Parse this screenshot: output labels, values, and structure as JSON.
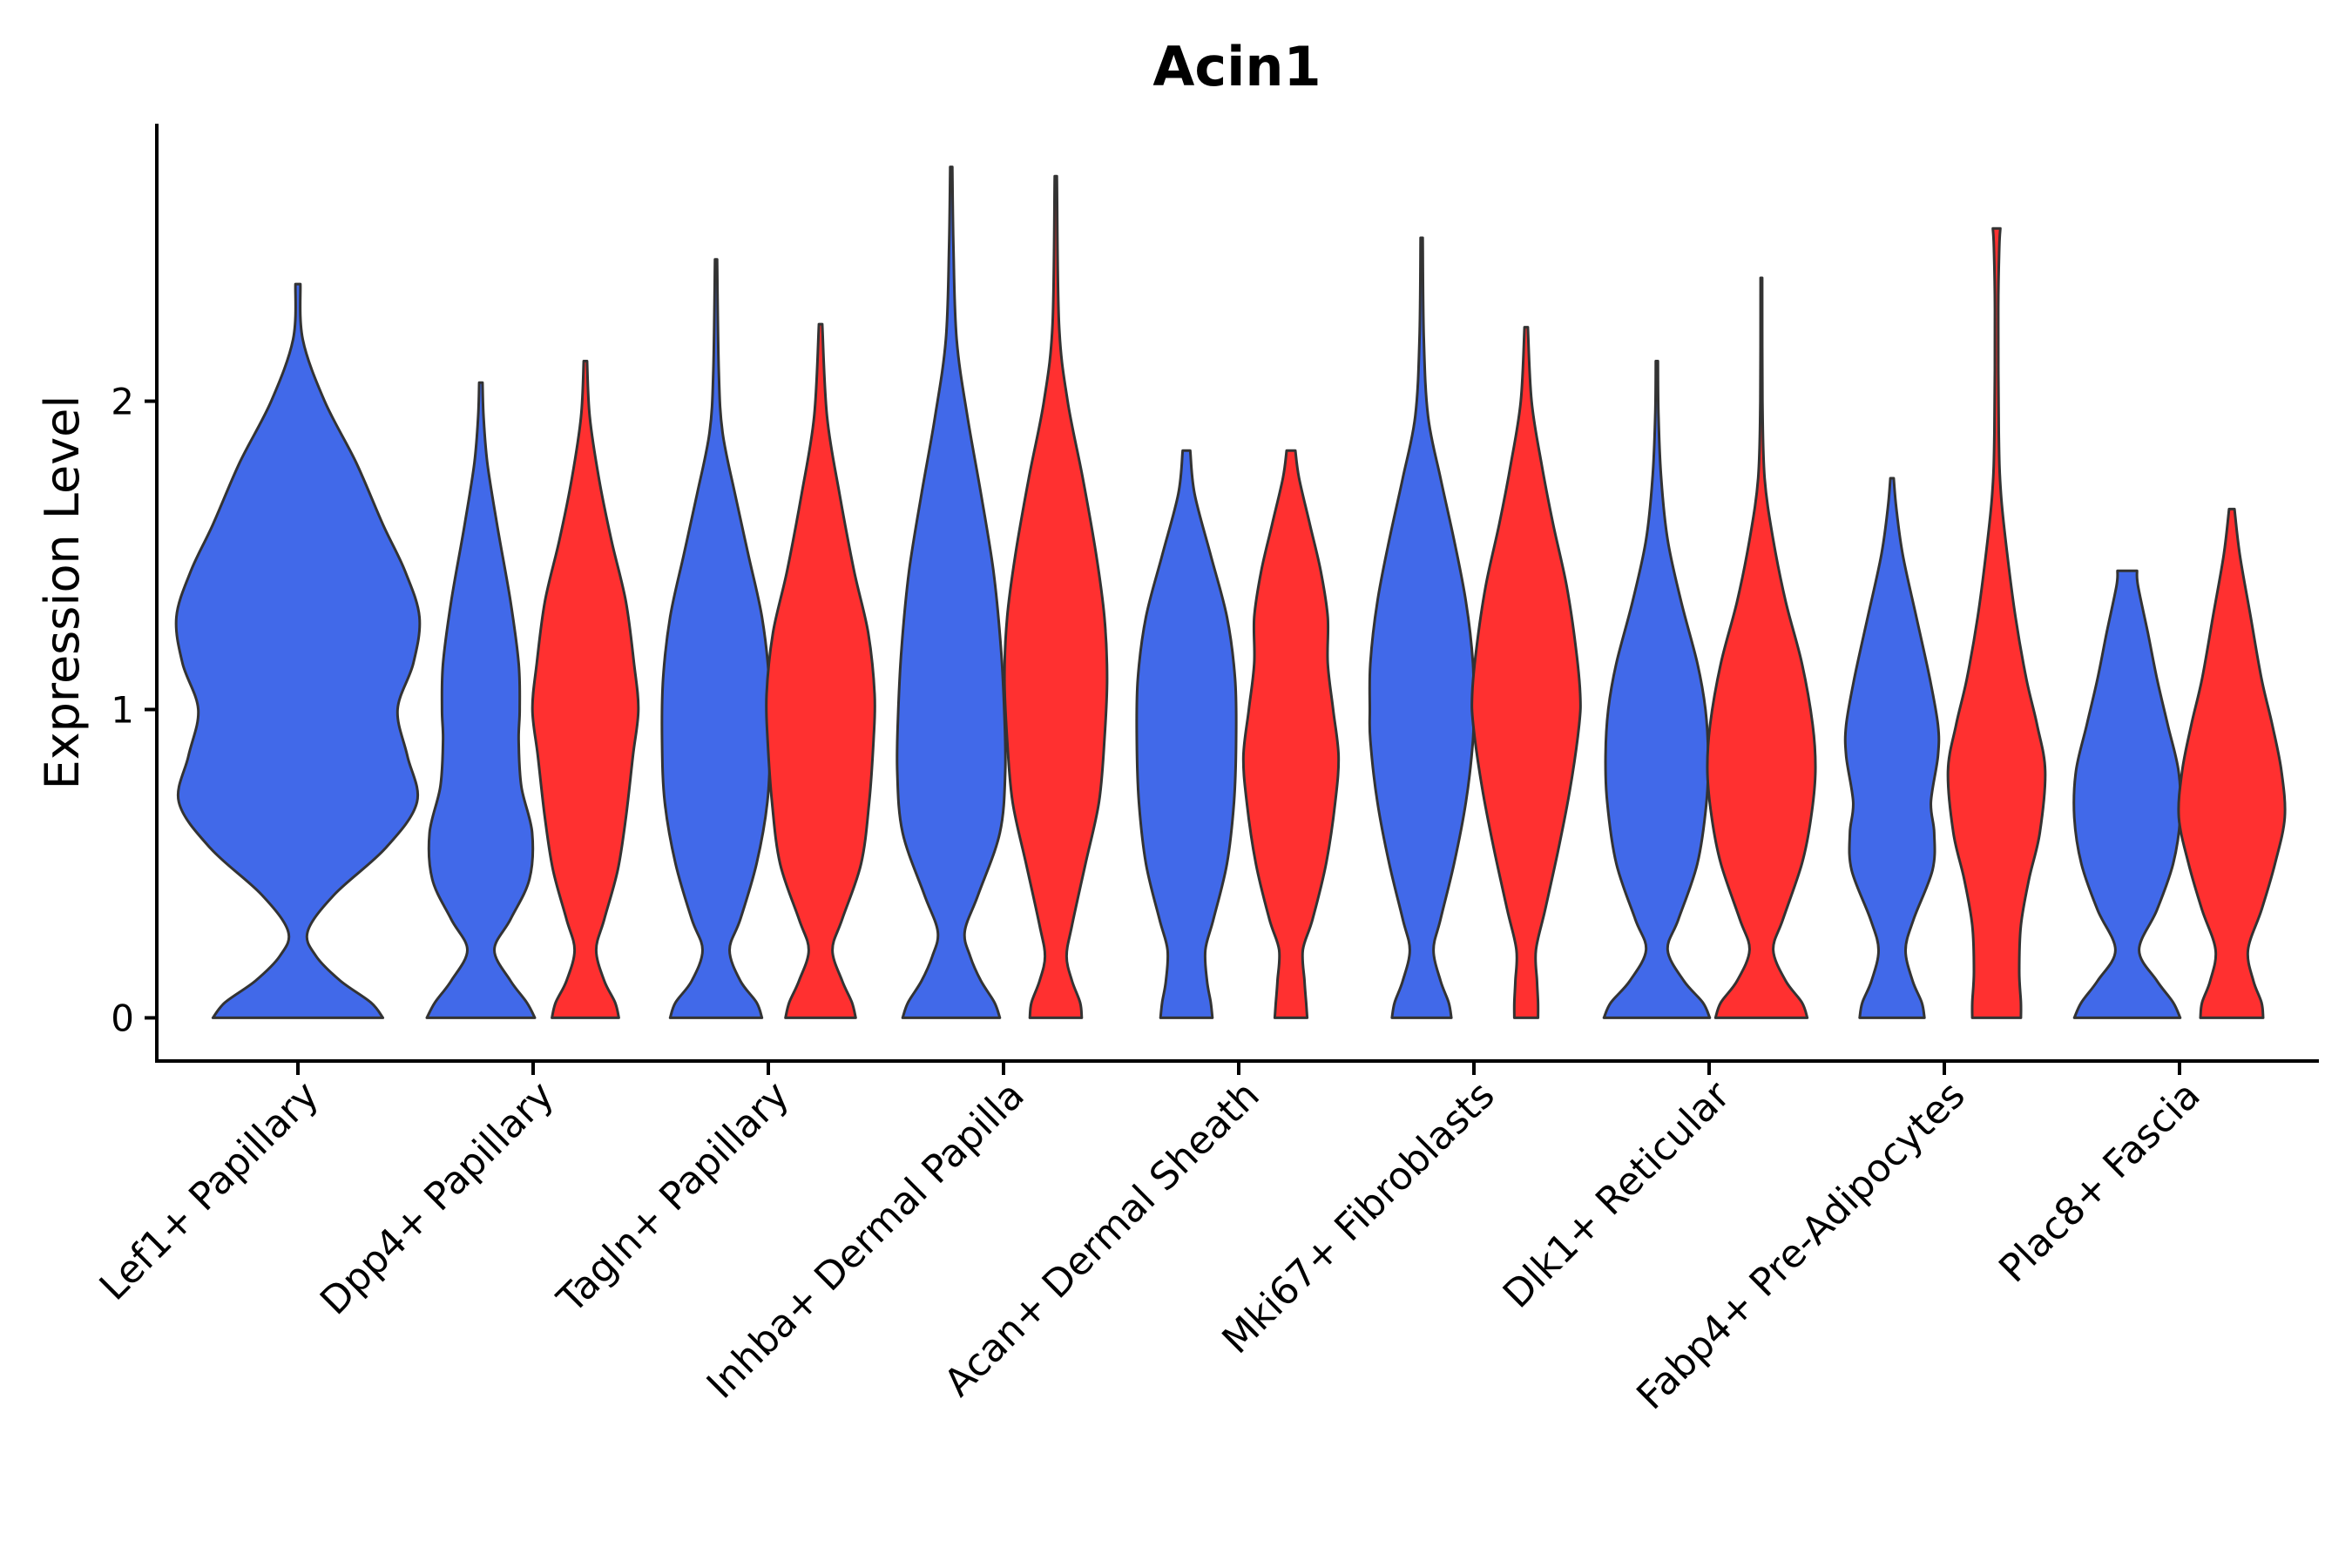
{
  "chart_data": {
    "type": "violin",
    "title": "Acin1",
    "ylabel": "Expression Level",
    "xlabel": "",
    "ylim": [
      -0.14,
      2.9
    ],
    "yticks": [
      0,
      1,
      2
    ],
    "categories": [
      "Lef1+ Papillary",
      "Dpp4+ Papillary",
      "Tagln+ Papillary",
      "Inhba+ Dermal Papilla",
      "Acan+ Dermal Sheath",
      "Mki67+ Fibroblasts",
      "Dlk1+ Reticular",
      "Fabp4+ Pre-Adipocytes",
      "Plac8+ Fascia"
    ],
    "series": [
      {
        "name": "blue group",
        "color": "#4169E9"
      },
      {
        "name": "red group",
        "color": "#FF3030"
      }
    ],
    "violins": [
      {
        "category": "Lef1+ Papillary",
        "series": "blue group",
        "max": 2.38,
        "profile": [
          [
            0,
            0.7
          ],
          [
            0.05,
            0.6
          ],
          [
            0.12,
            0.35
          ],
          [
            0.2,
            0.15
          ],
          [
            0.28,
            0.08
          ],
          [
            0.4,
            0.3
          ],
          [
            0.55,
            0.72
          ],
          [
            0.7,
            0.98
          ],
          [
            0.85,
            0.9
          ],
          [
            1.0,
            0.82
          ],
          [
            1.15,
            0.95
          ],
          [
            1.3,
            1.0
          ],
          [
            1.45,
            0.88
          ],
          [
            1.6,
            0.7
          ],
          [
            1.8,
            0.48
          ],
          [
            2.0,
            0.22
          ],
          [
            2.2,
            0.04
          ],
          [
            2.38,
            0.02
          ]
        ]
      },
      {
        "category": "Dpp4+ Papillary",
        "series": "blue group",
        "max": 2.06,
        "profile": [
          [
            0,
            1.0
          ],
          [
            0.05,
            0.85
          ],
          [
            0.12,
            0.55
          ],
          [
            0.22,
            0.25
          ],
          [
            0.32,
            0.55
          ],
          [
            0.45,
            0.9
          ],
          [
            0.6,
            0.95
          ],
          [
            0.75,
            0.75
          ],
          [
            0.9,
            0.7
          ],
          [
            1.0,
            0.72
          ],
          [
            1.15,
            0.7
          ],
          [
            1.35,
            0.55
          ],
          [
            1.6,
            0.3
          ],
          [
            1.8,
            0.12
          ],
          [
            1.95,
            0.05
          ],
          [
            2.06,
            0.03
          ]
        ]
      },
      {
        "category": "Dpp4+ Papillary",
        "series": "red group",
        "max": 2.13,
        "profile": [
          [
            0,
            0.62
          ],
          [
            0.05,
            0.55
          ],
          [
            0.12,
            0.35
          ],
          [
            0.22,
            0.2
          ],
          [
            0.32,
            0.35
          ],
          [
            0.48,
            0.6
          ],
          [
            0.65,
            0.75
          ],
          [
            0.85,
            0.88
          ],
          [
            1.0,
            0.98
          ],
          [
            1.15,
            0.9
          ],
          [
            1.35,
            0.75
          ],
          [
            1.55,
            0.48
          ],
          [
            1.75,
            0.25
          ],
          [
            1.95,
            0.08
          ],
          [
            2.13,
            0.03
          ]
        ]
      },
      {
        "category": "Tagln+ Papillary",
        "series": "blue group",
        "max": 2.46,
        "profile": [
          [
            0,
            0.85
          ],
          [
            0.05,
            0.75
          ],
          [
            0.12,
            0.45
          ],
          [
            0.22,
            0.25
          ],
          [
            0.32,
            0.45
          ],
          [
            0.5,
            0.75
          ],
          [
            0.7,
            0.95
          ],
          [
            0.9,
            1.0
          ],
          [
            1.1,
            0.98
          ],
          [
            1.3,
            0.85
          ],
          [
            1.5,
            0.6
          ],
          [
            1.7,
            0.35
          ],
          [
            1.9,
            0.12
          ],
          [
            2.1,
            0.05
          ],
          [
            2.46,
            0.02
          ]
        ]
      },
      {
        "category": "Tagln+ Papillary",
        "series": "red group",
        "max": 2.25,
        "profile": [
          [
            0,
            0.65
          ],
          [
            0.05,
            0.58
          ],
          [
            0.12,
            0.4
          ],
          [
            0.22,
            0.22
          ],
          [
            0.32,
            0.4
          ],
          [
            0.5,
            0.75
          ],
          [
            0.7,
            0.9
          ],
          [
            0.9,
            0.98
          ],
          [
            1.05,
            1.0
          ],
          [
            1.25,
            0.88
          ],
          [
            1.45,
            0.62
          ],
          [
            1.7,
            0.35
          ],
          [
            1.95,
            0.12
          ],
          [
            2.25,
            0.03
          ]
        ]
      },
      {
        "category": "Inhba+ Dermal Papilla",
        "series": "blue group",
        "max": 2.76,
        "profile": [
          [
            0,
            0.9
          ],
          [
            0.05,
            0.8
          ],
          [
            0.12,
            0.55
          ],
          [
            0.2,
            0.35
          ],
          [
            0.28,
            0.25
          ],
          [
            0.4,
            0.5
          ],
          [
            0.6,
            0.9
          ],
          [
            0.8,
            1.0
          ],
          [
            1.0,
            0.98
          ],
          [
            1.2,
            0.92
          ],
          [
            1.45,
            0.78
          ],
          [
            1.7,
            0.55
          ],
          [
            1.95,
            0.3
          ],
          [
            2.2,
            0.1
          ],
          [
            2.5,
            0.04
          ],
          [
            2.76,
            0.02
          ]
        ]
      },
      {
        "category": "Inhba+ Dermal Papilla",
        "series": "red group",
        "max": 2.73,
        "profile": [
          [
            0,
            0.48
          ],
          [
            0.05,
            0.45
          ],
          [
            0.12,
            0.3
          ],
          [
            0.2,
            0.2
          ],
          [
            0.3,
            0.3
          ],
          [
            0.5,
            0.55
          ],
          [
            0.7,
            0.8
          ],
          [
            0.9,
            0.9
          ],
          [
            1.1,
            0.95
          ],
          [
            1.3,
            0.9
          ],
          [
            1.5,
            0.75
          ],
          [
            1.75,
            0.5
          ],
          [
            2.0,
            0.22
          ],
          [
            2.25,
            0.06
          ],
          [
            2.73,
            0.02
          ]
        ]
      },
      {
        "category": "Acan+ Dermal Sheath",
        "series": "blue group",
        "max": 1.84,
        "profile": [
          [
            0,
            0.48
          ],
          [
            0.05,
            0.45
          ],
          [
            0.12,
            0.38
          ],
          [
            0.22,
            0.35
          ],
          [
            0.32,
            0.5
          ],
          [
            0.5,
            0.75
          ],
          [
            0.7,
            0.88
          ],
          [
            0.9,
            0.92
          ],
          [
            1.1,
            0.9
          ],
          [
            1.3,
            0.75
          ],
          [
            1.5,
            0.45
          ],
          [
            1.7,
            0.15
          ],
          [
            1.84,
            0.07
          ]
        ]
      },
      {
        "category": "Acan+ Dermal Sheath",
        "series": "red group",
        "max": 1.84,
        "profile": [
          [
            0,
            0.3
          ],
          [
            0.05,
            0.28
          ],
          [
            0.12,
            0.25
          ],
          [
            0.22,
            0.22
          ],
          [
            0.32,
            0.4
          ],
          [
            0.5,
            0.65
          ],
          [
            0.7,
            0.82
          ],
          [
            0.85,
            0.88
          ],
          [
            1.0,
            0.78
          ],
          [
            1.15,
            0.68
          ],
          [
            1.3,
            0.68
          ],
          [
            1.45,
            0.55
          ],
          [
            1.6,
            0.35
          ],
          [
            1.75,
            0.15
          ],
          [
            1.84,
            0.08
          ]
        ]
      },
      {
        "category": "Mki67+ Fibroblasts",
        "series": "blue group",
        "max": 2.53,
        "profile": [
          [
            0,
            0.55
          ],
          [
            0.05,
            0.5
          ],
          [
            0.12,
            0.35
          ],
          [
            0.22,
            0.22
          ],
          [
            0.32,
            0.35
          ],
          [
            0.5,
            0.6
          ],
          [
            0.7,
            0.82
          ],
          [
            0.9,
            0.95
          ],
          [
            1.0,
            0.96
          ],
          [
            1.15,
            0.95
          ],
          [
            1.35,
            0.82
          ],
          [
            1.55,
            0.6
          ],
          [
            1.75,
            0.35
          ],
          [
            1.95,
            0.12
          ],
          [
            2.2,
            0.04
          ],
          [
            2.53,
            0.02
          ]
        ]
      },
      {
        "category": "Mki67+ Fibroblasts",
        "series": "red group",
        "max": 2.24,
        "profile": [
          [
            0,
            0.22
          ],
          [
            0.05,
            0.22
          ],
          [
            0.12,
            0.2
          ],
          [
            0.22,
            0.18
          ],
          [
            0.35,
            0.35
          ],
          [
            0.55,
            0.6
          ],
          [
            0.75,
            0.82
          ],
          [
            0.95,
            0.98
          ],
          [
            1.05,
            1.0
          ],
          [
            1.2,
            0.92
          ],
          [
            1.4,
            0.75
          ],
          [
            1.6,
            0.5
          ],
          [
            1.8,
            0.28
          ],
          [
            2.0,
            0.1
          ],
          [
            2.24,
            0.03
          ]
        ]
      },
      {
        "category": "Dlk1+ Reticular",
        "series": "blue group",
        "max": 2.13,
        "profile": [
          [
            0,
            0.98
          ],
          [
            0.05,
            0.85
          ],
          [
            0.12,
            0.5
          ],
          [
            0.22,
            0.2
          ],
          [
            0.32,
            0.4
          ],
          [
            0.5,
            0.75
          ],
          [
            0.7,
            0.92
          ],
          [
            0.85,
            0.95
          ],
          [
            1.0,
            0.9
          ],
          [
            1.15,
            0.75
          ],
          [
            1.35,
            0.45
          ],
          [
            1.55,
            0.2
          ],
          [
            1.75,
            0.08
          ],
          [
            1.95,
            0.03
          ],
          [
            2.13,
            0.02
          ]
        ]
      },
      {
        "category": "Dlk1+ Reticular",
        "series": "red group",
        "max": 2.4,
        "profile": [
          [
            0,
            0.85
          ],
          [
            0.05,
            0.75
          ],
          [
            0.12,
            0.45
          ],
          [
            0.22,
            0.22
          ],
          [
            0.32,
            0.4
          ],
          [
            0.5,
            0.75
          ],
          [
            0.65,
            0.92
          ],
          [
            0.8,
            1.0
          ],
          [
            0.95,
            0.95
          ],
          [
            1.15,
            0.75
          ],
          [
            1.35,
            0.45
          ],
          [
            1.55,
            0.22
          ],
          [
            1.75,
            0.06
          ],
          [
            2.0,
            0.02
          ],
          [
            2.4,
            0.015
          ]
        ]
      },
      {
        "category": "Fabp4+ Pre-Adipocytes",
        "series": "blue group",
        "max": 1.75,
        "profile": [
          [
            0,
            0.6
          ],
          [
            0.05,
            0.55
          ],
          [
            0.12,
            0.38
          ],
          [
            0.22,
            0.25
          ],
          [
            0.32,
            0.4
          ],
          [
            0.48,
            0.75
          ],
          [
            0.6,
            0.78
          ],
          [
            0.7,
            0.72
          ],
          [
            0.85,
            0.85
          ],
          [
            0.95,
            0.85
          ],
          [
            1.1,
            0.7
          ],
          [
            1.3,
            0.45
          ],
          [
            1.5,
            0.2
          ],
          [
            1.65,
            0.08
          ],
          [
            1.75,
            0.03
          ]
        ]
      },
      {
        "category": "Fabp4+ Pre-Adipocytes",
        "series": "red group",
        "max": 2.56,
        "profile": [
          [
            0,
            0.45
          ],
          [
            0.05,
            0.45
          ],
          [
            0.15,
            0.42
          ],
          [
            0.3,
            0.45
          ],
          [
            0.45,
            0.6
          ],
          [
            0.6,
            0.8
          ],
          [
            0.8,
            0.9
          ],
          [
            0.95,
            0.75
          ],
          [
            1.1,
            0.55
          ],
          [
            1.3,
            0.35
          ],
          [
            1.5,
            0.2
          ],
          [
            1.7,
            0.08
          ],
          [
            1.9,
            0.04
          ],
          [
            2.3,
            0.03
          ],
          [
            2.5,
            0.05
          ],
          [
            2.56,
            0.07
          ]
        ]
      },
      {
        "category": "Plac8+ Fascia",
        "series": "blue group",
        "max": 1.45,
        "profile": [
          [
            0,
            0.98
          ],
          [
            0.05,
            0.85
          ],
          [
            0.12,
            0.55
          ],
          [
            0.22,
            0.22
          ],
          [
            0.35,
            0.55
          ],
          [
            0.5,
            0.85
          ],
          [
            0.65,
            0.98
          ],
          [
            0.8,
            0.95
          ],
          [
            0.95,
            0.75
          ],
          [
            1.1,
            0.55
          ],
          [
            1.25,
            0.38
          ],
          [
            1.4,
            0.2
          ],
          [
            1.45,
            0.18
          ]
        ]
      },
      {
        "category": "Plac8+ Fascia",
        "series": "red group",
        "max": 1.65,
        "profile": [
          [
            0,
            0.58
          ],
          [
            0.05,
            0.55
          ],
          [
            0.12,
            0.4
          ],
          [
            0.22,
            0.3
          ],
          [
            0.35,
            0.55
          ],
          [
            0.5,
            0.8
          ],
          [
            0.65,
            0.98
          ],
          [
            0.8,
            0.92
          ],
          [
            0.95,
            0.75
          ],
          [
            1.1,
            0.55
          ],
          [
            1.3,
            0.35
          ],
          [
            1.5,
            0.15
          ],
          [
            1.65,
            0.05
          ]
        ]
      }
    ]
  }
}
